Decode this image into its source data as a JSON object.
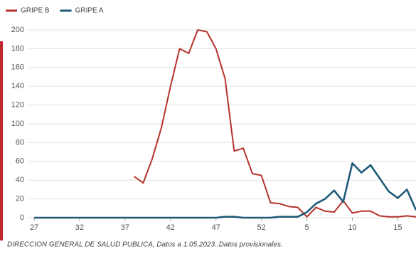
{
  "chart_data": {
    "type": "line",
    "categories": [
      "27",
      null,
      null,
      null,
      null,
      "32",
      null,
      null,
      null,
      null,
      "37",
      null,
      null,
      null,
      null,
      "42",
      null,
      null,
      null,
      null,
      "47",
      null,
      null,
      null,
      null,
      "52",
      null,
      null,
      null,
      null,
      "5",
      null,
      null,
      null,
      null,
      "10",
      null,
      null,
      null,
      null,
      "15",
      null,
      null
    ],
    "series": [
      {
        "name": "GRIPE B",
        "color": "#b5322b",
        "values": [
          null,
          null,
          null,
          null,
          null,
          null,
          null,
          null,
          null,
          null,
          null,
          44,
          37,
          63,
          96,
          140,
          180,
          175,
          200,
          198,
          180,
          148,
          71,
          74,
          47,
          45,
          16,
          15,
          12,
          11,
          1,
          11,
          7,
          6,
          18,
          5,
          7,
          7,
          2,
          1,
          1,
          2,
          1
        ]
      },
      {
        "name": "GRIPE A",
        "color": "#1e5b78",
        "values": [
          0,
          0,
          0,
          0,
          0,
          0,
          0,
          0,
          0,
          0,
          0,
          0,
          0,
          0,
          0,
          0,
          0,
          0,
          0,
          0,
          0,
          1,
          1,
          0,
          0,
          0,
          0,
          1,
          1,
          1,
          6,
          15,
          20,
          29,
          17,
          58,
          48,
          56,
          42,
          28,
          21,
          30,
          8
        ]
      }
    ],
    "ylim": [
      0,
      208
    ],
    "yticks": [
      0,
      20,
      40,
      60,
      80,
      100,
      120,
      140,
      160,
      180,
      200
    ],
    "grid": true,
    "footnote": "DIRECCION GENERAL DE SALUD PUBLICA, Datos a 1.05.2023..Datos provisionales."
  }
}
